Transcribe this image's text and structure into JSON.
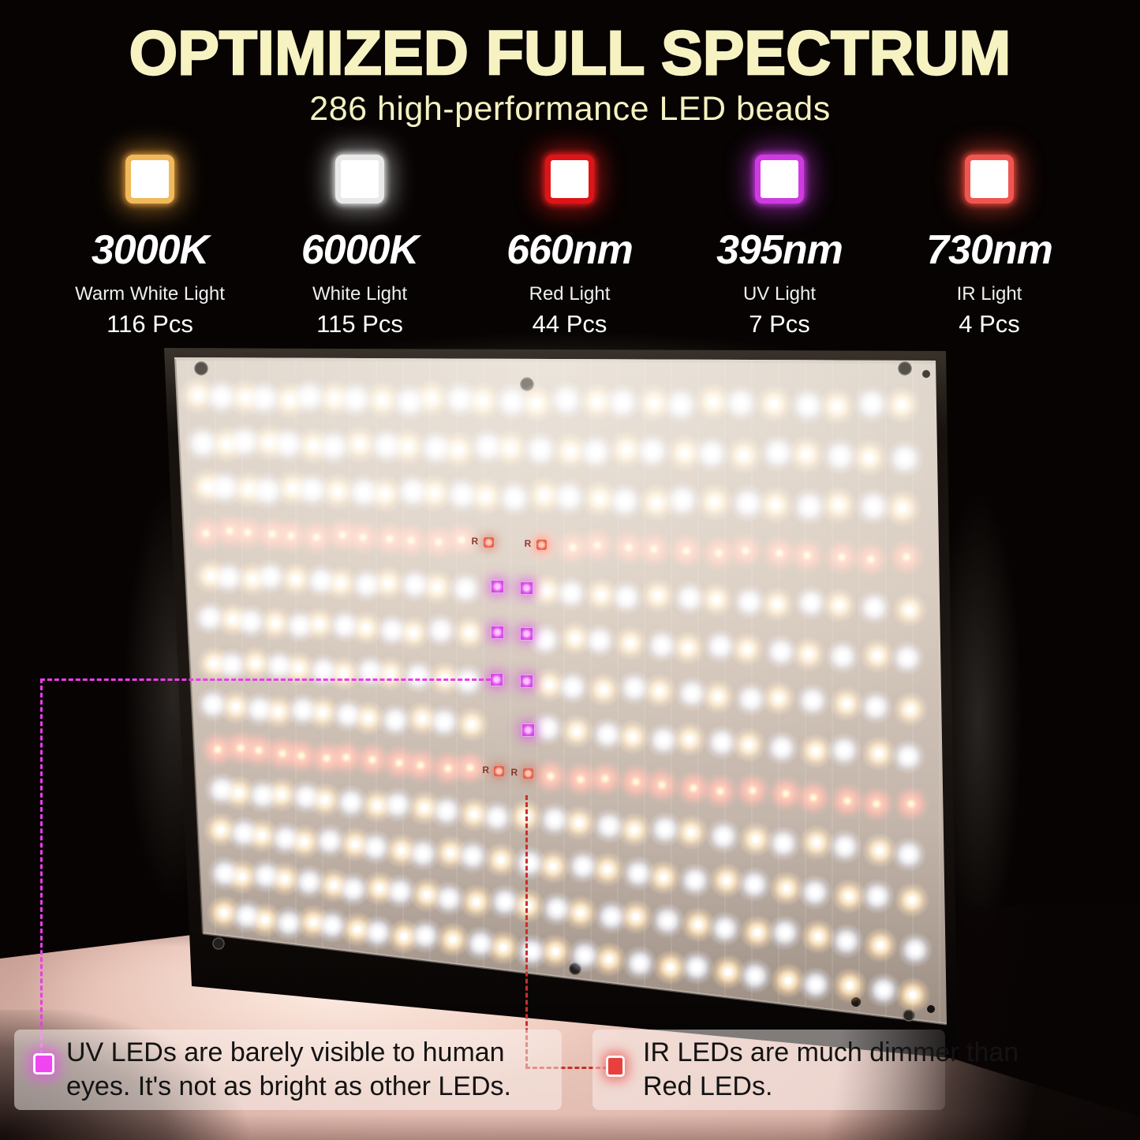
{
  "header": {
    "title": "OPTIMIZED FULL SPECTRUM",
    "subtitle": "286 high-performance LED beads"
  },
  "legend": {
    "items": [
      {
        "name": "3000K",
        "desc": "Warm White Light",
        "count": "116 Pcs",
        "swatch_color": "#efb95c",
        "glow_color": "#eda33e"
      },
      {
        "name": "6000K",
        "desc": "White Light",
        "count": "115 Pcs",
        "swatch_color": "#e9e9e9",
        "glow_color": "#ffffff"
      },
      {
        "name": "660nm",
        "desc": "Red Light",
        "count": "44 Pcs",
        "swatch_color": "#de1419",
        "glow_color": "#ff2020"
      },
      {
        "name": "395nm",
        "desc": "UV Light",
        "count": "7 Pcs",
        "swatch_color": "#cf3be0",
        "glow_color": "#d93ff2"
      },
      {
        "name": "730nm",
        "desc": "IR Light",
        "count": "4 Pcs",
        "swatch_color": "#f05552",
        "glow_color": "#ff5040"
      }
    ]
  },
  "annotations": {
    "uv": {
      "line1": "UV LEDs are barely visible to human",
      "line2": "eyes. It's not as bright as other LEDs.",
      "marker_color": "#ef46f2",
      "line_color": "#ea3cea"
    },
    "ir": {
      "line1": "IR LEDs are much dimmer than",
      "line2": "Red LEDs.",
      "marker_color": "#e8413d",
      "line_color": "#c92f2f"
    }
  },
  "panel": {
    "quad": {
      "tl": [
        221,
        453
      ],
      "tr": [
        1186,
        457
      ],
      "br": [
        1200,
        1298
      ],
      "bl": [
        257,
        1183
      ]
    },
    "rows": 13,
    "cols": 27,
    "red_rows": [
      3,
      8
    ],
    "lane_skip_rows": [
      3,
      4,
      5,
      6,
      7,
      8
    ],
    "lane_skip_cols": [
      12,
      13
    ],
    "u_start": 0.042,
    "u_step": 0.0355,
    "v_start": 0.065,
    "v_step": 0.0745,
    "uv_points": [
      [
        0.413,
        0.371
      ],
      [
        0.452,
        0.371
      ],
      [
        0.411,
        0.446
      ],
      [
        0.45,
        0.446
      ],
      [
        0.408,
        0.523
      ],
      [
        0.448,
        0.523
      ],
      [
        0.447,
        0.603
      ]
    ],
    "ir_points": [
      [
        0.404,
        0.301
      ],
      [
        0.474,
        0.301
      ],
      [
        0.408,
        0.674
      ],
      [
        0.446,
        0.674
      ]
    ],
    "ir_label": "R"
  }
}
